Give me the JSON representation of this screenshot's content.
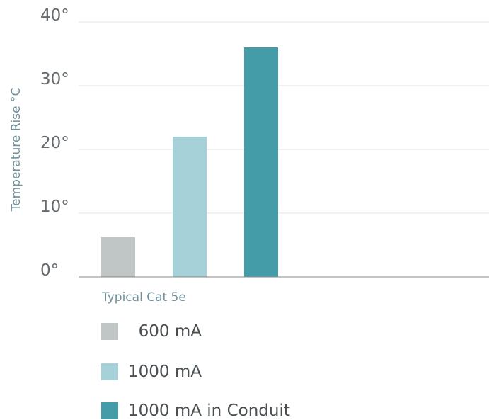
{
  "chart_data": {
    "type": "bar",
    "categories": [
      "Typical Cat 5e"
    ],
    "series": [
      {
        "name": "600 mA",
        "values": [
          6.3
        ],
        "color": "#bfc6c5"
      },
      {
        "name": "1000 mA",
        "values": [
          22
        ],
        "color": "#a7d1d8"
      },
      {
        "name": "1000 mA in Conduit",
        "values": [
          36
        ],
        "color": "#459ca9"
      }
    ],
    "ylabel": "Temperature Rise °C",
    "xlabel": "",
    "ylim": [
      0,
      40
    ],
    "yticks": [
      0,
      10,
      20,
      30,
      40
    ],
    "ytick_labels": [
      "0°",
      "10°",
      "20°",
      "30°",
      "40°"
    ],
    "grid": true,
    "legend_position": "bottom-left"
  },
  "legend": {
    "items": [
      {
        "label": "  600 mA",
        "color": "#bfc6c5"
      },
      {
        "label": "1000 mA",
        "color": "#a7d1d8"
      },
      {
        "label": "1000 mA in Conduit",
        "color": "#459ca9"
      }
    ]
  }
}
